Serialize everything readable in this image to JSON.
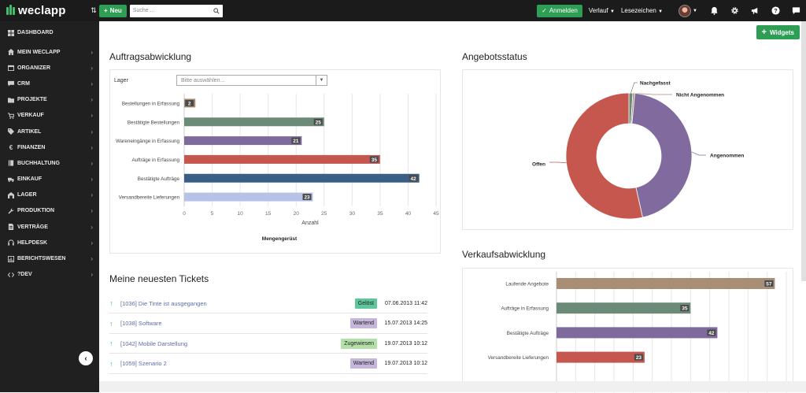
{
  "topbar": {
    "logo": "weclapp",
    "new_label": "Neu",
    "search_placeholder": "Suche ...",
    "login_label": "Anmelden",
    "history_label": "Verlauf",
    "bookmarks_label": "Lesezeichen"
  },
  "sidebar": {
    "items": [
      {
        "label": "DASHBOARD",
        "icon": "dashboard-icon"
      },
      {
        "label": "MEIN WECLAPP",
        "icon": "home-icon"
      },
      {
        "label": "ORGANIZER",
        "icon": "calendar-icon"
      },
      {
        "label": "CRM",
        "icon": "chat-icon"
      },
      {
        "label": "PROJEKTE",
        "icon": "folder-icon"
      },
      {
        "label": "VERKAUF",
        "icon": "cart-icon"
      },
      {
        "label": "ARTIKEL",
        "icon": "tag-icon"
      },
      {
        "label": "FINANZEN",
        "icon": "euro-icon"
      },
      {
        "label": "BUCHHALTUNG",
        "icon": "book-icon"
      },
      {
        "label": "EINKAUF",
        "icon": "truck-icon"
      },
      {
        "label": "LAGER",
        "icon": "warehouse-icon"
      },
      {
        "label": "PRODUKTION",
        "icon": "wrench-icon"
      },
      {
        "label": "VERTRÄGE",
        "icon": "contract-icon"
      },
      {
        "label": "HELPDESK",
        "icon": "headset-icon"
      },
      {
        "label": "BERICHTSWESEN",
        "icon": "report-icon"
      },
      {
        "label": "?DEV",
        "icon": "dev-icon"
      }
    ]
  },
  "main": {
    "widgets_label": "Widgets",
    "auftrag_title": "Auftragsabwicklung",
    "lager_label": "Lager",
    "lager_placeholder": "Bitte auswählen...",
    "angebot_title": "Angebotsstatus",
    "verkauf_title": "Verkaufsabwicklung",
    "tickets_title": "Meine neuesten Tickets",
    "tickets": [
      {
        "id_title": "[1036] Die Tinte ist ausgegangen",
        "status": "Gelöst",
        "status_color": "#5fc59a",
        "date": "07.06.2013 11:42"
      },
      {
        "id_title": "[1038] Software",
        "status": "Wartend",
        "status_color": "#c6b6db",
        "date": "15.07.2013 14:25"
      },
      {
        "id_title": "[1042] Mobile Darstellung",
        "status": "Zugewiesen",
        "status_color": "#b3e0a8",
        "date": "19.07.2013 10:12"
      },
      {
        "id_title": "[1059] Szenario 2",
        "status": "Wartend",
        "status_color": "#c6b6db",
        "date": "19.07.2013 10:12"
      }
    ]
  },
  "chart_data": [
    {
      "type": "bar",
      "orientation": "horizontal",
      "categories": [
        "Bestellungen in Erfassung",
        "Bestätigte Bestellungen",
        "Wareneingänge in Erfassung",
        "Aufträge in Erfassung",
        "Bestätigte Aufträge",
        "Versandbereite Lieferungen"
      ],
      "values": [
        2,
        25,
        21,
        35,
        42,
        23
      ],
      "colors": [
        "#a88e75",
        "#6b8a78",
        "#7e6a9c",
        "#c5574f",
        "#3a5f86",
        "#b7c2e6"
      ],
      "xlabel": "Anzahl",
      "footer": "Mengengerüst",
      "xlim": [
        0,
        45
      ],
      "xticks": [
        0,
        5,
        10,
        15,
        20,
        25,
        30,
        35,
        40,
        45
      ],
      "grid": true
    },
    {
      "type": "pie",
      "donut": true,
      "slices": [
        {
          "label": "Nachgefasst",
          "value": 1,
          "color": "#6b8a78"
        },
        {
          "label": "Nicht Angenommen",
          "value": 0.5,
          "color": "#a88e75"
        },
        {
          "label": "Angenommen",
          "value": 45,
          "color": "#806a9e"
        },
        {
          "label": "Offen",
          "value": 53.5,
          "color": "#c5574f"
        }
      ]
    },
    {
      "type": "bar",
      "orientation": "horizontal",
      "categories": [
        "Laufende Angebote",
        "Aufträge in Erfassung",
        "Bestätigte Aufträge",
        "Versandbereite Lieferungen"
      ],
      "values": [
        57,
        35,
        42,
        23
      ],
      "colors": [
        "#a88e75",
        "#6b8a78",
        "#7e6a9c",
        "#c5574f"
      ],
      "xlim": [
        0,
        60
      ],
      "grid": true
    }
  ]
}
